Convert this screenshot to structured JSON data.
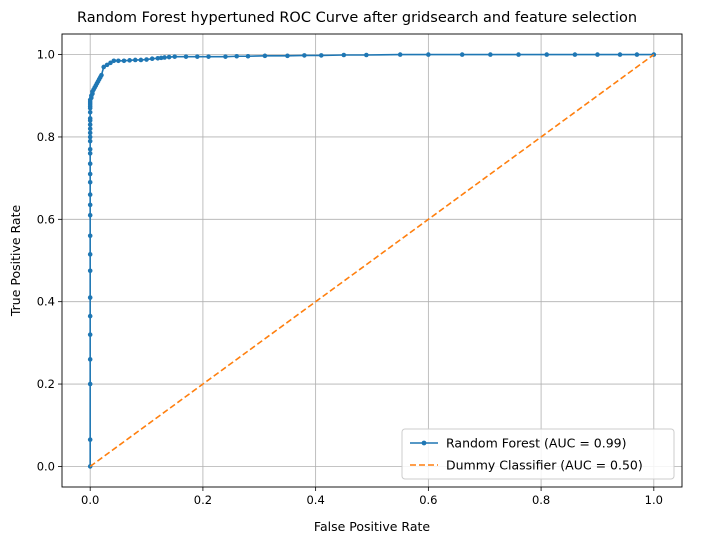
{
  "chart_data": {
    "type": "line",
    "title": "Random Forest hypertuned ROC Curve after gridsearch and feature selection",
    "xlabel": "False Positive Rate",
    "ylabel": "True Positive Rate",
    "xlim": [
      -0.05,
      1.05
    ],
    "ylim": [
      -0.05,
      1.05
    ],
    "xticks": [
      0.0,
      0.2,
      0.4,
      0.6,
      0.8,
      1.0
    ],
    "xtick_labels": [
      "0.0",
      "0.2",
      "0.4",
      "0.6",
      "0.8",
      "1.0"
    ],
    "yticks": [
      0.0,
      0.2,
      0.4,
      0.6,
      0.8,
      1.0
    ],
    "ytick_labels": [
      "0.0",
      "0.2",
      "0.4",
      "0.6",
      "0.8",
      "1.0"
    ],
    "grid": true,
    "legend_position": "lower-right",
    "series": [
      {
        "name": "Random Forest (AUC = 0.99)",
        "color": "#1f77b4",
        "style": "solid",
        "marker": "dot",
        "x": [
          0,
          0,
          0,
          0,
          0,
          0,
          0,
          0,
          0,
          0,
          0,
          0,
          0,
          0,
          0,
          0,
          0,
          0,
          0,
          0,
          0,
          0,
          0,
          0,
          0,
          0,
          0,
          0,
          0,
          0,
          0,
          0.002,
          0.002,
          0.004,
          0.004,
          0.006,
          0.008,
          0.01,
          0.012,
          0.014,
          0.016,
          0.018,
          0.02,
          0.024,
          0.03,
          0.036,
          0.042,
          0.05,
          0.06,
          0.07,
          0.08,
          0.09,
          0.1,
          0.11,
          0.12,
          0.126,
          0.132,
          0.14,
          0.15,
          0.17,
          0.19,
          0.21,
          0.24,
          0.26,
          0.28,
          0.31,
          0.35,
          0.38,
          0.41,
          0.45,
          0.49,
          0.55,
          0.6,
          0.66,
          0.71,
          0.76,
          0.81,
          0.86,
          0.9,
          0.94,
          0.97,
          1.0
        ],
        "y": [
          0.0,
          0.065,
          0.2,
          0.26,
          0.32,
          0.365,
          0.41,
          0.475,
          0.515,
          0.56,
          0.61,
          0.635,
          0.66,
          0.69,
          0.71,
          0.735,
          0.76,
          0.77,
          0.79,
          0.8,
          0.81,
          0.82,
          0.83,
          0.84,
          0.845,
          0.86,
          0.87,
          0.875,
          0.88,
          0.885,
          0.89,
          0.895,
          0.9,
          0.905,
          0.91,
          0.915,
          0.92,
          0.925,
          0.93,
          0.935,
          0.94,
          0.945,
          0.95,
          0.97,
          0.975,
          0.98,
          0.985,
          0.985,
          0.985,
          0.986,
          0.987,
          0.987,
          0.988,
          0.99,
          0.991,
          0.992,
          0.993,
          0.994,
          0.995,
          0.995,
          0.995,
          0.995,
          0.995,
          0.996,
          0.996,
          0.997,
          0.997,
          0.998,
          0.998,
          0.999,
          0.999,
          1.0,
          1.0,
          1.0,
          1.0,
          1.0,
          1.0,
          1.0,
          1.0,
          1.0,
          1.0,
          1.0
        ]
      },
      {
        "name": "Dummy Classifier (AUC = 0.50)",
        "color": "#ff7f0e",
        "style": "dashed",
        "marker": "none",
        "x": [
          0.0,
          1.0
        ],
        "y": [
          0.0,
          1.0
        ]
      }
    ]
  }
}
